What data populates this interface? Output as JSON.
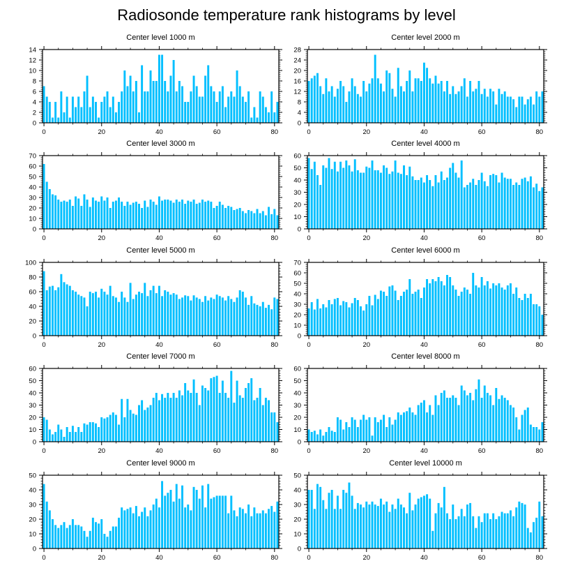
{
  "title": "Radiosonde temperature rank histograms by level",
  "colors": {
    "bar": "#00BFFF",
    "axis": "#000000",
    "background": "#ffffff"
  },
  "chart_data": [
    {
      "type": "bar",
      "title": "Center level 1000 m",
      "xlim": [
        -0.5,
        81.5
      ],
      "ylim": [
        0,
        14
      ],
      "xticks": [
        0,
        20,
        40,
        60,
        80
      ],
      "yticks": [
        0,
        2,
        4,
        6,
        8,
        10,
        12,
        14
      ],
      "values": [
        7,
        5,
        4,
        1,
        4,
        1,
        6,
        2,
        5,
        1,
        5,
        3,
        5,
        3,
        6,
        9,
        3,
        5,
        4,
        1,
        4,
        5,
        6,
        3,
        5,
        2,
        4,
        6,
        10,
        7,
        9,
        6,
        8,
        2,
        11,
        6,
        6,
        10,
        8,
        8,
        13,
        13,
        8,
        6,
        9,
        12,
        6,
        8,
        7,
        4,
        4,
        6,
        9,
        7,
        5,
        5,
        9,
        11,
        7,
        6,
        4,
        6,
        7,
        3,
        5,
        6,
        5,
        10,
        7,
        5,
        4,
        6,
        1,
        3,
        1,
        6,
        5,
        3,
        2,
        6,
        2,
        4
      ]
    },
    {
      "type": "bar",
      "title": "Center level 2000 m",
      "xlim": [
        -0.5,
        81.5
      ],
      "ylim": [
        0,
        28
      ],
      "xticks": [
        0,
        20,
        40,
        60,
        80
      ],
      "yticks": [
        0,
        4,
        8,
        12,
        16,
        20,
        24,
        28
      ],
      "values": [
        16,
        17,
        18,
        19,
        14,
        11,
        17,
        12,
        14,
        10,
        13,
        16,
        14,
        8,
        12,
        17,
        14,
        11,
        10,
        16,
        12,
        15,
        17,
        26,
        17,
        15,
        12,
        20,
        19,
        13,
        10,
        21,
        14,
        12,
        16,
        20,
        12,
        17,
        17,
        16,
        23,
        21,
        17,
        15,
        18,
        15,
        16,
        12,
        16,
        11,
        14,
        11,
        12,
        14,
        17,
        10,
        16,
        12,
        13,
        16,
        11,
        13,
        10,
        13,
        12,
        7,
        13,
        11,
        12,
        10,
        10,
        9,
        6,
        10,
        10,
        7,
        9,
        10,
        7,
        12,
        10,
        12
      ]
    },
    {
      "type": "bar",
      "title": "Center level 3000 m",
      "xlim": [
        -0.5,
        81.5
      ],
      "ylim": [
        0,
        70
      ],
      "xticks": [
        0,
        20,
        40,
        60,
        80
      ],
      "yticks": [
        0,
        10,
        20,
        30,
        40,
        50,
        60,
        70
      ],
      "values": [
        62,
        45,
        38,
        33,
        32,
        28,
        26,
        27,
        26,
        28,
        22,
        31,
        29,
        22,
        33,
        28,
        21,
        30,
        27,
        26,
        31,
        27,
        30,
        20,
        26,
        27,
        30,
        26,
        22,
        26,
        23,
        25,
        26,
        24,
        20,
        27,
        21,
        28,
        26,
        23,
        31,
        27,
        28,
        28,
        27,
        25,
        28,
        26,
        28,
        24,
        27,
        26,
        28,
        24,
        25,
        28,
        26,
        27,
        26,
        20,
        22,
        26,
        23,
        20,
        22,
        21,
        18,
        19,
        20,
        17,
        15,
        18,
        17,
        15,
        19,
        15,
        17,
        13,
        21,
        14,
        19,
        13
      ]
    },
    {
      "type": "bar",
      "title": "Center level 4000 m",
      "xlim": [
        -0.5,
        81.5
      ],
      "ylim": [
        0,
        60
      ],
      "xticks": [
        0,
        20,
        40,
        60,
        80
      ],
      "yticks": [
        0,
        10,
        20,
        30,
        40,
        50,
        60
      ],
      "values": [
        58,
        49,
        55,
        44,
        36,
        52,
        50,
        58,
        49,
        55,
        47,
        55,
        50,
        56,
        52,
        47,
        57,
        48,
        46,
        46,
        51,
        50,
        56,
        48,
        48,
        46,
        52,
        50,
        45,
        47,
        56,
        46,
        45,
        52,
        44,
        51,
        43,
        40,
        40,
        42,
        38,
        44,
        40,
        35,
        44,
        38,
        47,
        40,
        42,
        50,
        54,
        46,
        42,
        56,
        34,
        36,
        38,
        41,
        36,
        40,
        46,
        39,
        35,
        44,
        45,
        44,
        38,
        46,
        42,
        41,
        41,
        36,
        38,
        36,
        41,
        42,
        39,
        43,
        34,
        37,
        31,
        34
      ]
    },
    {
      "type": "bar",
      "title": "Center level 5000 m",
      "xlim": [
        -0.5,
        81.5
      ],
      "ylim": [
        0,
        100
      ],
      "xticks": [
        0,
        20,
        40,
        60,
        80
      ],
      "yticks": [
        0,
        20,
        40,
        60,
        80,
        100
      ],
      "values": [
        88,
        62,
        67,
        68,
        62,
        66,
        84,
        73,
        70,
        68,
        62,
        60,
        56,
        54,
        52,
        40,
        60,
        58,
        60,
        52,
        64,
        60,
        56,
        68,
        54,
        52,
        46,
        60,
        52,
        46,
        72,
        50,
        56,
        60,
        58,
        72,
        54,
        62,
        68,
        58,
        68,
        54,
        62,
        60,
        56,
        58,
        56,
        50,
        52,
        55,
        54,
        48,
        55,
        52,
        50,
        46,
        54,
        48,
        52,
        50,
        56,
        54,
        52,
        48,
        54,
        50,
        46,
        52,
        62,
        60,
        52,
        42,
        54,
        44,
        42,
        40,
        46,
        38,
        42,
        36,
        52,
        50
      ]
    },
    {
      "type": "bar",
      "title": "Center level 6000 m",
      "xlim": [
        -0.5,
        81.5
      ],
      "ylim": [
        0,
        70
      ],
      "xticks": [
        0,
        20,
        40,
        60,
        80
      ],
      "yticks": [
        0,
        10,
        20,
        30,
        40,
        50,
        60,
        70
      ],
      "values": [
        26,
        32,
        25,
        35,
        26,
        30,
        27,
        34,
        30,
        35,
        36,
        29,
        33,
        32,
        27,
        31,
        36,
        34,
        28,
        24,
        30,
        38,
        29,
        39,
        35,
        43,
        42,
        38,
        47,
        48,
        43,
        34,
        38,
        42,
        44,
        54,
        40,
        42,
        44,
        36,
        46,
        54,
        50,
        54,
        52,
        56,
        52,
        48,
        58,
        56,
        48,
        44,
        38,
        42,
        46,
        44,
        40,
        60,
        48,
        46,
        56,
        48,
        52,
        45,
        50,
        48,
        50,
        46,
        44,
        48,
        50,
        40,
        46,
        36,
        34,
        40,
        36,
        40,
        30,
        30,
        28,
        20
      ]
    },
    {
      "type": "bar",
      "title": "Center level 7000 m",
      "xlim": [
        -0.5,
        81.5
      ],
      "ylim": [
        0,
        60
      ],
      "xticks": [
        0,
        20,
        40,
        60,
        80
      ],
      "yticks": [
        0,
        10,
        20,
        30,
        40,
        50,
        60
      ],
      "values": [
        20,
        18,
        10,
        6,
        8,
        14,
        10,
        4,
        12,
        8,
        13,
        8,
        12,
        8,
        15,
        14,
        16,
        16,
        15,
        12,
        20,
        19,
        20,
        22,
        24,
        22,
        14,
        35,
        20,
        35,
        26,
        23,
        22,
        30,
        34,
        26,
        28,
        30,
        36,
        40,
        34,
        39,
        36,
        40,
        36,
        40,
        36,
        42,
        38,
        48,
        42,
        40,
        51,
        40,
        30,
        46,
        44,
        42,
        52,
        53,
        54,
        40,
        50,
        40,
        36,
        58,
        32,
        50,
        38,
        36,
        44,
        48,
        52,
        34,
        36,
        44,
        30,
        36,
        34,
        24,
        24,
        16
      ]
    },
    {
      "type": "bar",
      "title": "Center level 8000 m",
      "xlim": [
        -0.5,
        81.5
      ],
      "ylim": [
        0,
        60
      ],
      "xticks": [
        0,
        20,
        40,
        60,
        80
      ],
      "yticks": [
        0,
        10,
        20,
        30,
        40,
        50,
        60
      ],
      "values": [
        10,
        8,
        9,
        6,
        10,
        5,
        8,
        12,
        9,
        8,
        20,
        18,
        10,
        16,
        12,
        20,
        18,
        12,
        18,
        22,
        18,
        20,
        5,
        20,
        16,
        18,
        22,
        12,
        20,
        14,
        18,
        24,
        22,
        24,
        25,
        28,
        24,
        22,
        30,
        32,
        34,
        24,
        30,
        22,
        38,
        30,
        40,
        42,
        36,
        36,
        38,
        36,
        30,
        46,
        42,
        38,
        40,
        34,
        43,
        51,
        36,
        46,
        40,
        38,
        30,
        44,
        35,
        38,
        36,
        34,
        30,
        28,
        20,
        10,
        22,
        26,
        28,
        14,
        12,
        12,
        10,
        16
      ]
    },
    {
      "type": "bar",
      "title": "Center level 9000 m",
      "xlim": [
        -0.5,
        81.5
      ],
      "ylim": [
        0,
        50
      ],
      "xticks": [
        0,
        20,
        40,
        60,
        80
      ],
      "yticks": [
        0,
        10,
        20,
        30,
        40,
        50
      ],
      "values": [
        44,
        32,
        26,
        20,
        16,
        14,
        16,
        18,
        14,
        16,
        20,
        16,
        16,
        15,
        12,
        8,
        12,
        21,
        18,
        17,
        20,
        10,
        8,
        12,
        15,
        15,
        21,
        28,
        26,
        27,
        28,
        24,
        29,
        22,
        25,
        28,
        22,
        26,
        30,
        34,
        28,
        46,
        36,
        38,
        40,
        32,
        44,
        34,
        43,
        28,
        30,
        26,
        42,
        40,
        34,
        43,
        28,
        44,
        34,
        35,
        36,
        36,
        36,
        36,
        24,
        36,
        26,
        22,
        28,
        27,
        24,
        30,
        22,
        28,
        24,
        24,
        26,
        24,
        27,
        29,
        25,
        32
      ]
    },
    {
      "type": "bar",
      "title": "Center level 10000 m",
      "xlim": [
        -0.5,
        81.5
      ],
      "ylim": [
        0,
        50
      ],
      "xticks": [
        0,
        20,
        40,
        60,
        80
      ],
      "yticks": [
        0,
        10,
        20,
        30,
        40,
        50
      ],
      "values": [
        40,
        40,
        27,
        44,
        42,
        33,
        27,
        38,
        40,
        27,
        36,
        27,
        40,
        38,
        45,
        36,
        27,
        31,
        30,
        28,
        32,
        30,
        32,
        30,
        29,
        34,
        30,
        32,
        25,
        30,
        27,
        34,
        30,
        28,
        24,
        38,
        26,
        30,
        34,
        35,
        36,
        37,
        34,
        12,
        24,
        31,
        28,
        42,
        24,
        20,
        30,
        20,
        22,
        27,
        22,
        30,
        31,
        22,
        14,
        22,
        18,
        24,
        24,
        20,
        24,
        20,
        22,
        25,
        24,
        24,
        26,
        22,
        28,
        32,
        31,
        30,
        14,
        11,
        18,
        21,
        32,
        22
      ]
    }
  ]
}
